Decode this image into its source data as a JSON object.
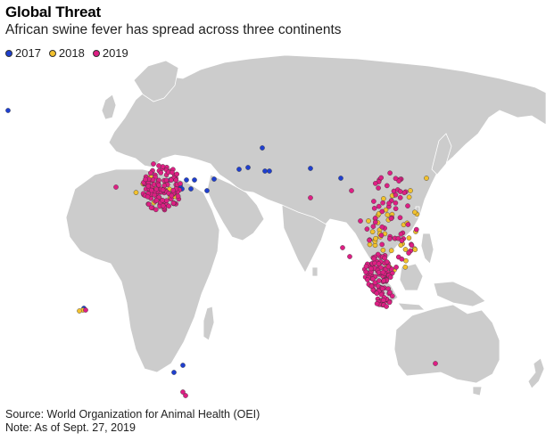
{
  "title": "Global Threat",
  "subtitle": "African swine fever has spread across three continents",
  "legend": [
    {
      "label": "2017",
      "color": "#1f3fcf"
    },
    {
      "label": "2018",
      "color": "#f2c12e"
    },
    {
      "label": "2019",
      "color": "#de1f84"
    }
  ],
  "source": "Source: World Organization for Animal Health (OEI)",
  "note": "Note: As of Sept. 27, 2019"
}
